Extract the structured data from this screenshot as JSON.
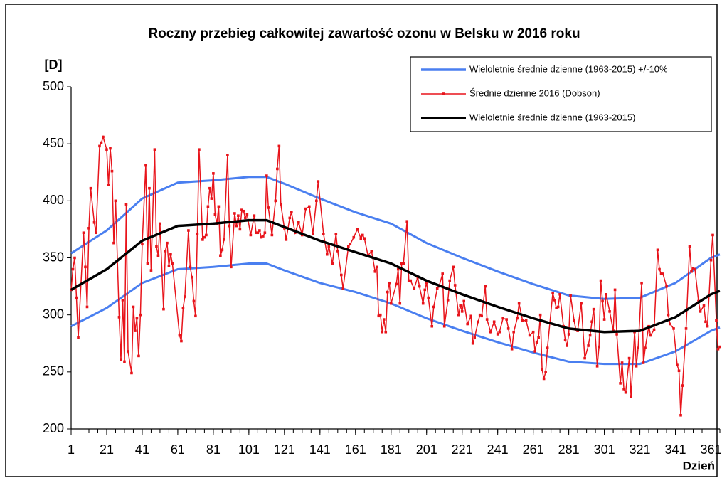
{
  "chart_data": {
    "type": "line",
    "title": "Roczny przebieg całkowitej zawartość ozonu w Belsku w 2016 roku",
    "y_label": "[D]",
    "x_label": "Dzień",
    "xlim": [
      1,
      366
    ],
    "xticks": [
      1,
      21,
      41,
      61,
      81,
      101,
      121,
      141,
      161,
      181,
      201,
      221,
      241,
      261,
      281,
      301,
      321,
      341,
      361
    ],
    "ylim": [
      200,
      500
    ],
    "yticks": [
      200,
      250,
      300,
      350,
      400,
      450,
      500
    ],
    "grid": false,
    "legend": "upper right",
    "series": [
      {
        "name": "Wieloletnie średnie dzienne (1963-2015)  +/-10%",
        "color": "#4a7ff0",
        "x": [
          1,
          21,
          41,
          61,
          81,
          101,
          111,
          121,
          141,
          161,
          181,
          201,
          221,
          241,
          261,
          281,
          301,
          321,
          341,
          361,
          366
        ],
        "values": [
          354,
          374,
          402,
          416,
          418,
          421,
          421,
          415,
          402,
          390,
          380,
          363,
          350,
          338,
          327,
          317,
          314,
          315,
          328,
          350,
          353
        ]
      },
      {
        "color": "#4a7ff0",
        "x": [
          1,
          21,
          41,
          61,
          81,
          101,
          111,
          121,
          141,
          161,
          181,
          201,
          221,
          241,
          261,
          281,
          301,
          321,
          341,
          361,
          366
        ],
        "values": [
          290,
          306,
          328,
          340,
          342,
          345,
          345,
          339,
          328,
          320,
          310,
          297,
          286,
          276,
          267,
          259,
          257,
          257,
          268,
          286,
          289
        ]
      },
      {
        "name": "Średnie dzienne 2016 (Dobson)",
        "color": "#e8141b",
        "x": [
          1,
          2,
          3,
          4,
          5,
          8,
          9,
          10,
          11,
          12,
          14,
          15,
          17,
          18,
          19,
          21,
          22,
          23,
          24,
          25,
          26,
          28,
          29,
          30,
          31,
          32,
          33,
          35,
          36,
          37,
          38,
          39,
          40,
          41,
          43,
          44,
          45,
          46,
          48,
          49,
          50,
          51,
          53,
          54,
          55,
          56,
          57,
          58,
          62,
          63,
          64,
          65,
          67,
          68,
          69,
          70,
          71,
          72,
          73,
          75,
          76,
          77,
          78,
          79,
          80,
          81,
          82,
          83,
          84,
          85,
          86,
          87,
          89,
          90,
          91,
          93,
          94,
          95,
          96,
          97,
          98,
          99,
          100,
          102,
          104,
          105,
          106,
          107,
          108,
          109,
          110,
          111,
          112,
          114,
          116,
          117,
          118,
          119,
          121,
          122,
          124,
          125,
          127,
          129,
          131,
          133,
          135,
          137,
          139,
          140,
          143,
          145,
          146,
          148,
          150,
          151,
          153,
          154,
          157,
          158,
          160,
          162,
          164,
          165,
          166,
          168,
          170,
          172,
          173,
          174,
          175,
          176,
          177,
          178,
          179,
          180,
          181,
          184,
          185,
          186,
          187,
          188,
          190,
          191,
          192,
          194,
          196,
          197,
          199,
          200,
          201,
          202,
          204,
          205,
          207,
          208,
          210,
          211,
          213,
          214,
          216,
          217,
          219,
          220,
          221,
          222,
          224,
          226,
          227,
          228,
          230,
          231,
          232,
          234,
          235,
          237,
          239,
          241,
          242,
          244,
          246,
          247,
          249,
          250,
          252,
          253,
          255,
          257,
          259,
          261,
          262,
          263,
          264,
          265,
          266,
          267,
          268,
          269,
          272,
          273,
          274,
          275,
          276,
          278,
          279,
          280,
          281,
          282,
          284,
          285,
          286,
          288,
          290,
          292,
          293,
          294,
          295,
          297,
          298,
          299,
          300,
          301,
          302,
          304,
          306,
          307,
          308,
          310,
          311,
          312,
          313,
          315,
          316,
          318,
          319,
          320,
          322,
          323,
          324,
          326,
          327,
          329,
          331,
          332,
          333,
          334,
          336,
          337,
          338,
          340,
          342,
          343,
          344,
          345,
          347,
          349,
          350,
          351,
          352,
          354,
          355,
          357,
          358,
          359,
          361,
          362,
          364,
          365,
          366
        ],
        "values": [
          322,
          340,
          350,
          315,
          280,
          372,
          342,
          307,
          376,
          411,
          381,
          372,
          448,
          451,
          456,
          445,
          414,
          446,
          426,
          363,
          400,
          298,
          261,
          313,
          259,
          397,
          268,
          249,
          307,
          286,
          297,
          264,
          300,
          362,
          431,
          345,
          411,
          339,
          445,
          360,
          352,
          380,
          305,
          356,
          363,
          343,
          353,
          345,
          282,
          277,
          306,
          316,
          374,
          342,
          333,
          312,
          299,
          371,
          445,
          366,
          368,
          370,
          395,
          411,
          402,
          424,
          388,
          380,
          395,
          352,
          357,
          366,
          440,
          378,
          342,
          389,
          378,
          387,
          375,
          392,
          391,
          385,
          388,
          370,
          387,
          372,
          372,
          374,
          368,
          369,
          372,
          422,
          394,
          370,
          400,
          428,
          448,
          397,
          376,
          366,
          385,
          390,
          372,
          381,
          370,
          393,
          395,
          371,
          400,
          417,
          371,
          353,
          360,
          345,
          371,
          356,
          335,
          323,
          360,
          362,
          368,
          375,
          367,
          370,
          367,
          352,
          356,
          338,
          342,
          299,
          300,
          285,
          296,
          285,
          320,
          328,
          310,
          327,
          340,
          310,
          345,
          345,
          382,
          330,
          330,
          323,
          333,
          325,
          310,
          322,
          328,
          315,
          290,
          307,
          323,
          325,
          336,
          290,
          313,
          330,
          342,
          326,
          300,
          308,
          303,
          312,
          292,
          299,
          275,
          280,
          294,
          300,
          299,
          325,
          296,
          285,
          294,
          283,
          285,
          297,
          296,
          288,
          270,
          285,
          297,
          310,
          295,
          295,
          282,
          285,
          268,
          276,
          280,
          300,
          252,
          244,
          250,
          271,
          319,
          313,
          306,
          307,
          318,
          290,
          278,
          273,
          283,
          317,
          295,
          287,
          286,
          310,
          262,
          273,
          282,
          294,
          305,
          255,
          272,
          330,
          312,
          296,
          318,
          303,
          286,
          322,
          283,
          240,
          258,
          235,
          232,
          262,
          228,
          285,
          255,
          271,
          328,
          258,
          271,
          290,
          282,
          287,
          357,
          340,
          336,
          336,
          325,
          300,
          292,
          288,
          256,
          251,
          212,
          238,
          288,
          360,
          338,
          341,
          340,
          312,
          303,
          308,
          294,
          290,
          348,
          370,
          295,
          270,
          272
        ]
      },
      {
        "name": "Wieloletnie średnie dzienne (1963-2015)",
        "color": "#000000",
        "x": [
          1,
          21,
          41,
          61,
          81,
          101,
          111,
          121,
          141,
          161,
          181,
          201,
          221,
          241,
          261,
          281,
          301,
          321,
          341,
          361,
          366
        ],
        "values": [
          322,
          340,
          365,
          378,
          380,
          383,
          383,
          377,
          365,
          355,
          345,
          330,
          318,
          307,
          297,
          288,
          285,
          286,
          298,
          318,
          321
        ]
      }
    ]
  }
}
